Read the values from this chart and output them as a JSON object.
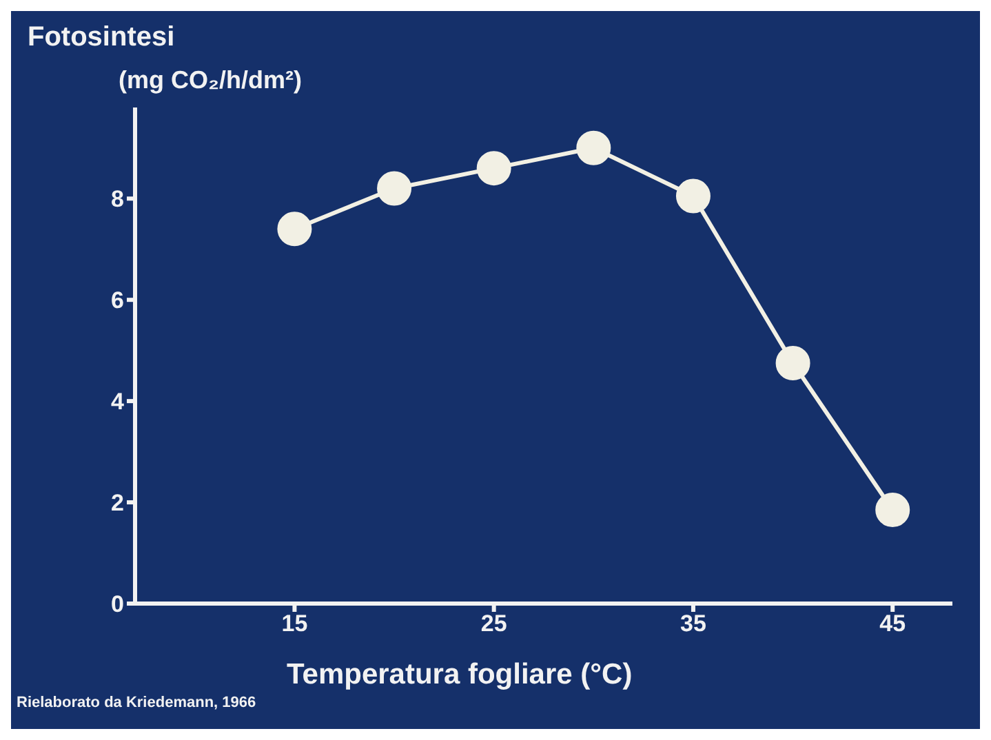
{
  "chart_data": {
    "type": "line",
    "title": "Fotosintesi",
    "ylabel": "(mg CO₂/h/dm²)",
    "xlabel": "Temperatura fogliare (°C)",
    "annotations": [
      "Rielaborato da Kriedemann, 1966"
    ],
    "x": [
      15,
      20,
      25,
      30,
      35,
      40,
      45
    ],
    "series": [
      {
        "color": "#f2f0e4",
        "values": [
          7.4,
          8.2,
          8.6,
          9.0,
          8.05,
          4.75,
          1.85
        ]
      }
    ],
    "xlim": [
      7,
      48
    ],
    "xticks": [
      15,
      25,
      35,
      45
    ],
    "ylim": [
      0,
      9.8
    ],
    "yticks": [
      0,
      2,
      4,
      6,
      8
    ],
    "marker": "circle",
    "line_style": "solid"
  }
}
